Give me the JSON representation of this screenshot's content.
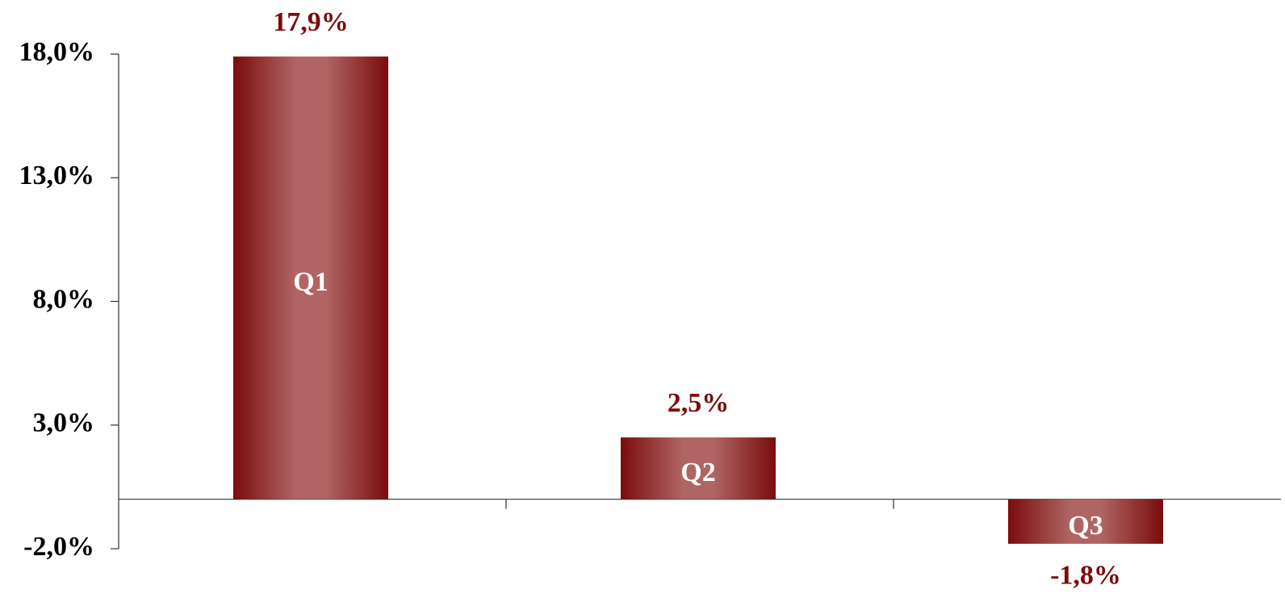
{
  "chart_data": {
    "type": "bar",
    "categories": [
      "Q1",
      "Q2",
      "Q3"
    ],
    "values": [
      17.9,
      2.5,
      -1.8
    ],
    "value_labels": [
      "17,9%",
      "2,5%",
      "-1,8%"
    ],
    "color": "#7a0c0c",
    "ylim": [
      -2,
      18
    ],
    "yticks": [
      {
        "value": -2,
        "label": "-2,0%"
      },
      {
        "value": 3,
        "label": "3,0%"
      },
      {
        "value": 8,
        "label": "8,0%"
      },
      {
        "value": 13,
        "label": "13,0%"
      },
      {
        "value": 18,
        "label": "18,0%"
      }
    ],
    "grid": false
  }
}
